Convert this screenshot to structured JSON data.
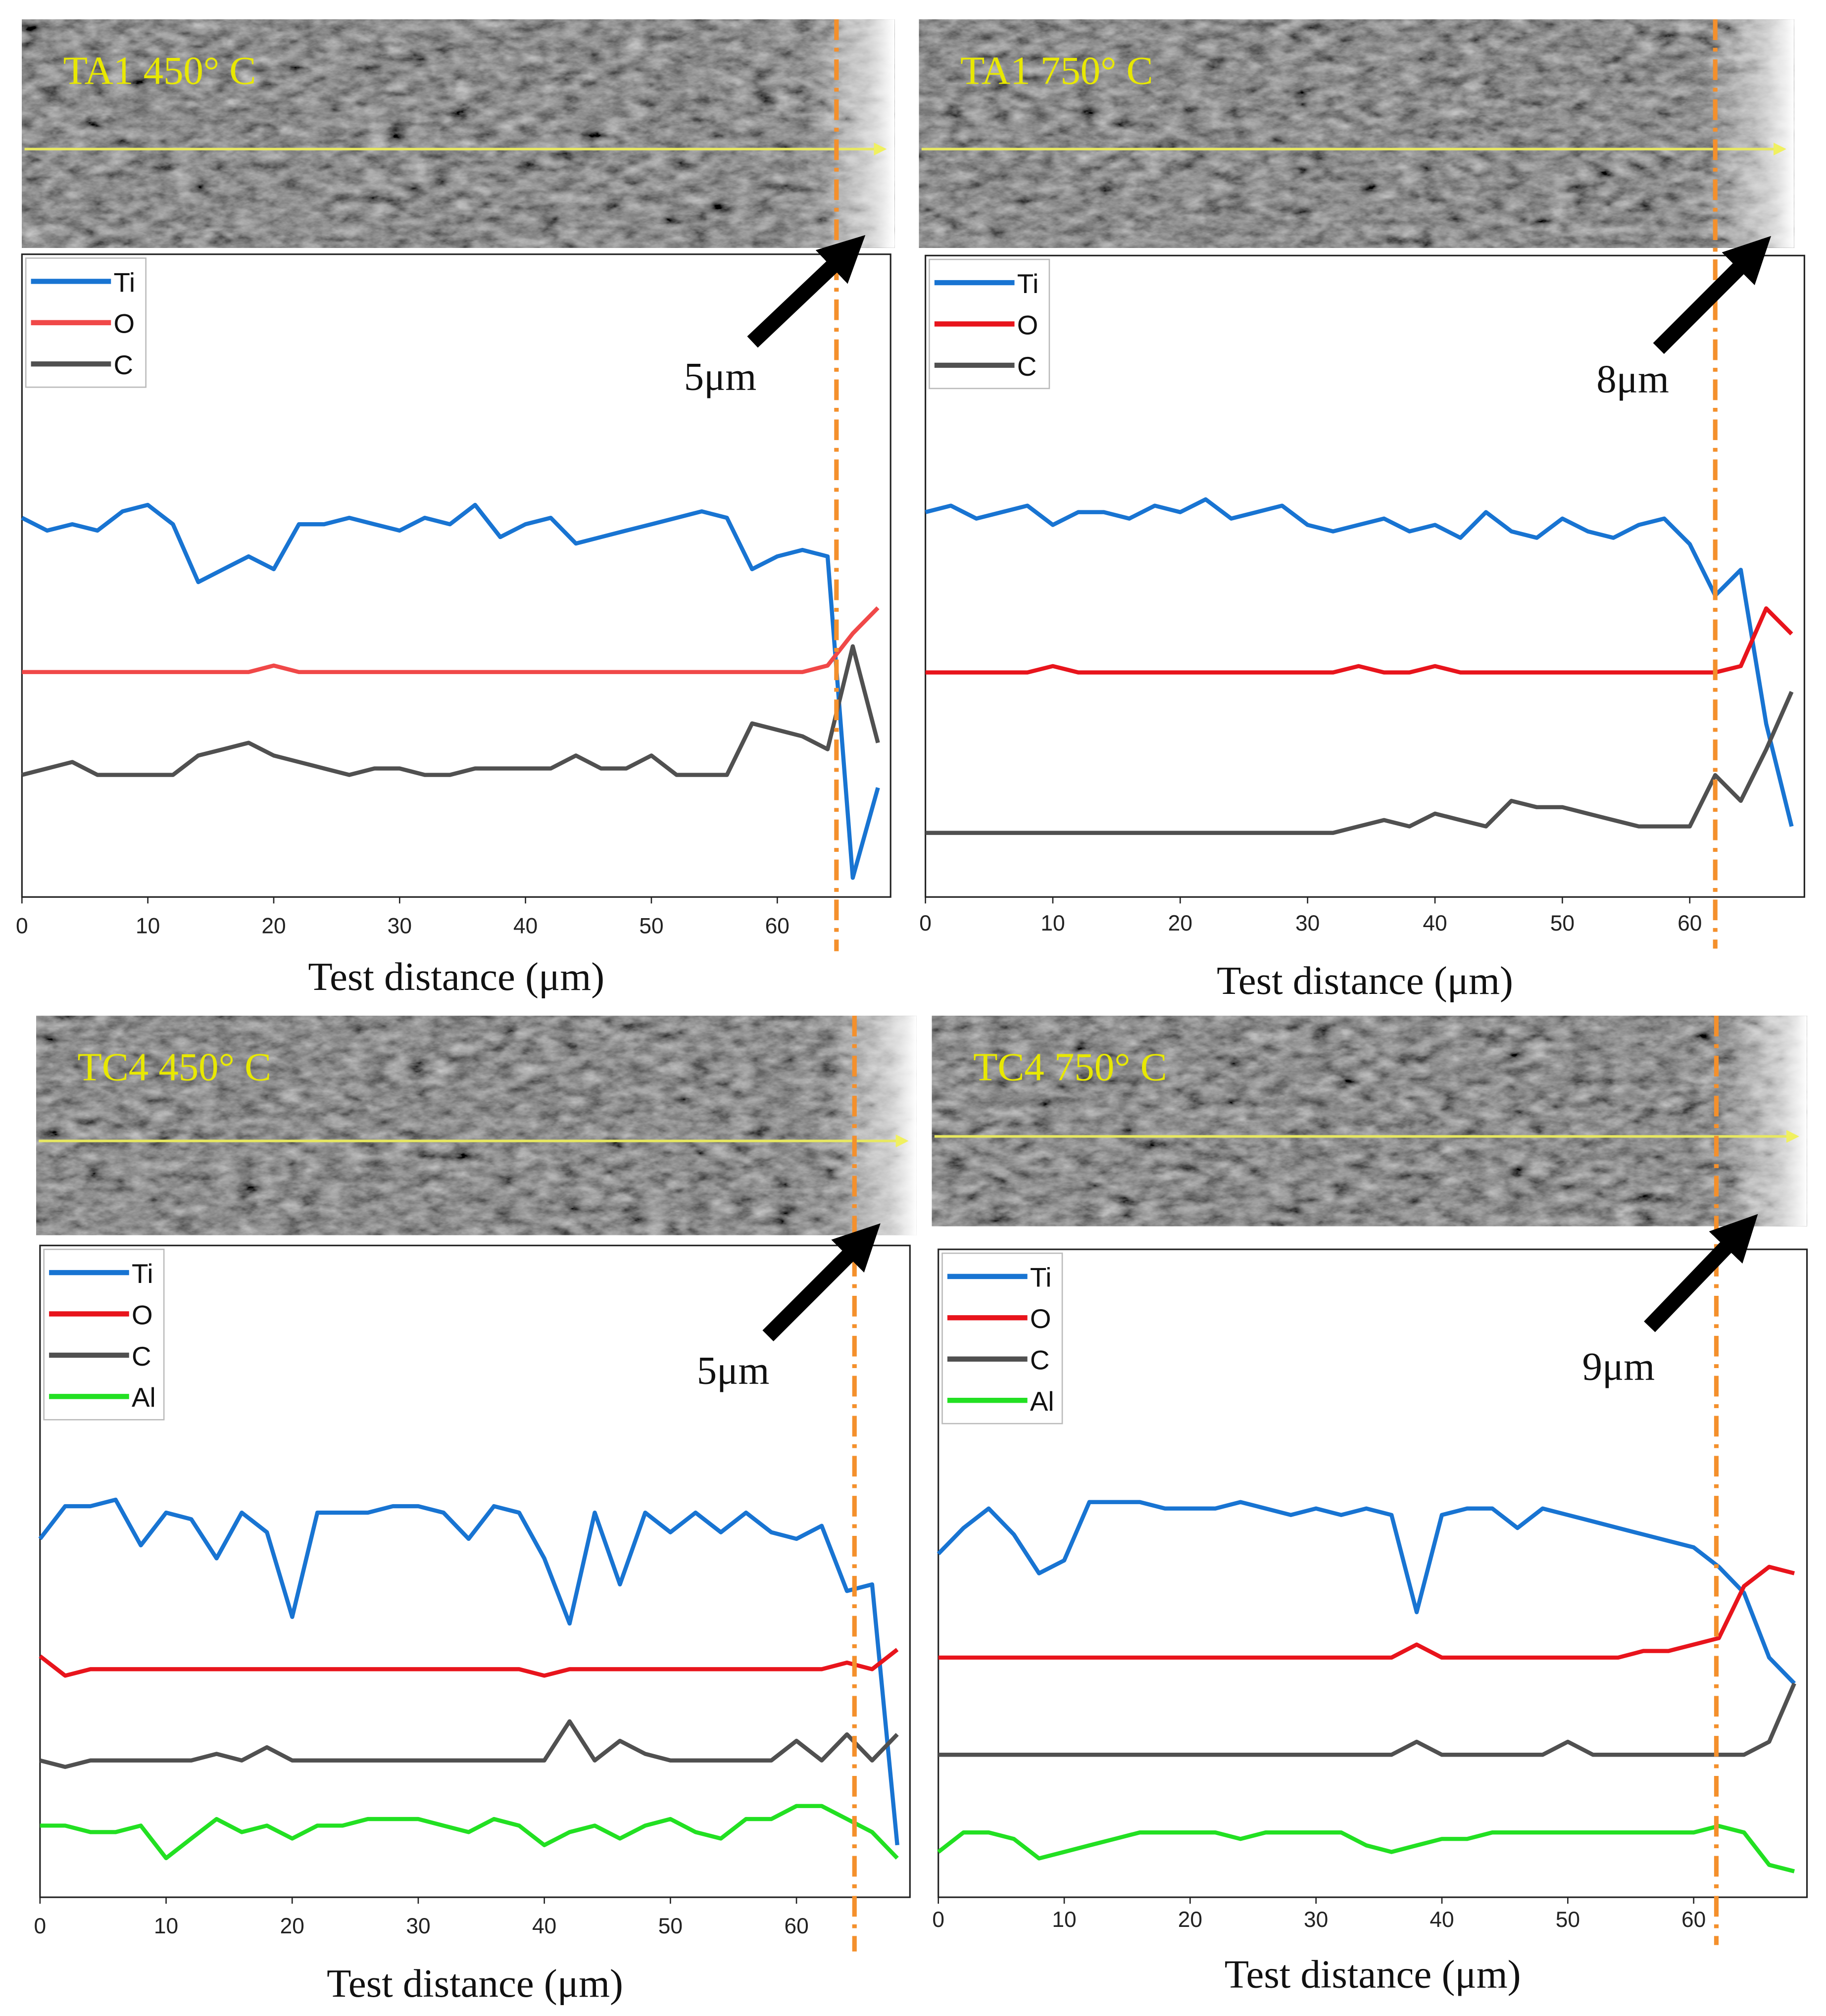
{
  "chart_data": [
    {
      "type": "line",
      "title": "TA1 450° C",
      "annotation": "5μm",
      "xlabel": "Test distance (μm)",
      "x": [
        0,
        2,
        4,
        6,
        8,
        10,
        12,
        14,
        16,
        18,
        20,
        22,
        24,
        26,
        28,
        30,
        32,
        34,
        36,
        38,
        40,
        42,
        44,
        46,
        48,
        50,
        52,
        54,
        56,
        58,
        60,
        62,
        64,
        66,
        68
      ],
      "xlim": [
        0,
        69
      ],
      "xticks": [
        0,
        10,
        20,
        30,
        40,
        50,
        60
      ],
      "ylim": [
        0,
        100
      ],
      "boundary_x": 64.7,
      "series": [
        {
          "name": "Ti",
          "color": "#1874d2",
          "values": [
            59,
            57,
            58,
            57,
            60,
            61,
            58,
            49,
            51,
            53,
            51,
            58,
            58,
            59,
            58,
            57,
            59,
            58,
            61,
            56,
            58,
            59,
            55,
            56,
            57,
            58,
            59,
            60,
            59,
            51,
            53,
            54,
            53,
            3,
            17
          ]
        },
        {
          "name": "O",
          "color": "#f04848",
          "values": [
            35,
            35,
            35,
            35,
            35,
            35,
            35,
            35,
            35,
            35,
            36,
            35,
            35,
            35,
            35,
            35,
            35,
            35,
            35,
            35,
            35,
            35,
            35,
            35,
            35,
            35,
            35,
            35,
            35,
            35,
            35,
            35,
            36,
            41,
            45
          ]
        },
        {
          "name": "C",
          "color": "#505050",
          "values": [
            19,
            20,
            21,
            19,
            19,
            19,
            19,
            22,
            23,
            24,
            22,
            21,
            20,
            19,
            20,
            20,
            19,
            19,
            20,
            20,
            20,
            20,
            22,
            20,
            20,
            22,
            19,
            19,
            19,
            27,
            26,
            25,
            23,
            39,
            24
          ]
        }
      ]
    },
    {
      "type": "line",
      "title": "TA1 750° C",
      "annotation": "8μm",
      "xlabel": "Test distance (μm)",
      "x": [
        0,
        2,
        4,
        6,
        8,
        10,
        12,
        14,
        16,
        18,
        20,
        22,
        24,
        26,
        28,
        30,
        32,
        34,
        36,
        38,
        40,
        42,
        44,
        46,
        48,
        50,
        52,
        54,
        56,
        58,
        60,
        62,
        64,
        66,
        68
      ],
      "xlim": [
        0,
        69
      ],
      "xticks": [
        0,
        10,
        20,
        30,
        40,
        50,
        60
      ],
      "ylim": [
        0,
        100
      ],
      "boundary_x": 62,
      "series": [
        {
          "name": "Ti",
          "color": "#1874d2",
          "values": [
            60,
            61,
            59,
            60,
            61,
            58,
            60,
            60,
            59,
            61,
            60,
            62,
            59,
            60,
            61,
            58,
            57,
            58,
            59,
            57,
            58,
            56,
            60,
            57,
            56,
            59,
            57,
            56,
            58,
            59,
            55,
            47,
            51,
            27,
            11
          ]
        },
        {
          "name": "O",
          "color": "#e8141c",
          "values": [
            35,
            35,
            35,
            35,
            35,
            36,
            35,
            35,
            35,
            35,
            35,
            35,
            35,
            35,
            35,
            35,
            35,
            36,
            35,
            35,
            36,
            35,
            35,
            35,
            35,
            35,
            35,
            35,
            35,
            35,
            35,
            35,
            36,
            45,
            41
          ]
        },
        {
          "name": "C",
          "color": "#505050",
          "values": [
            10,
            10,
            10,
            10,
            10,
            10,
            10,
            10,
            10,
            10,
            10,
            10,
            10,
            10,
            10,
            10,
            10,
            11,
            12,
            11,
            13,
            12,
            11,
            15,
            14,
            14,
            13,
            12,
            11,
            11,
            11,
            19,
            15,
            23,
            32
          ]
        }
      ]
    },
    {
      "type": "line",
      "title": "TC4 450° C",
      "annotation": "5μm",
      "xlabel": "Test distance (μm)",
      "x": [
        0,
        2,
        4,
        6,
        8,
        10,
        12,
        14,
        16,
        18,
        20,
        22,
        24,
        26,
        28,
        30,
        32,
        34,
        36,
        38,
        40,
        42,
        44,
        46,
        48,
        50,
        52,
        54,
        56,
        58,
        60,
        62,
        64,
        66,
        68
      ],
      "xlim": [
        0,
        69
      ],
      "xticks": [
        0,
        10,
        20,
        30,
        40,
        50,
        60
      ],
      "ylim": [
        0,
        100
      ],
      "boundary_x": 64.6,
      "series": [
        {
          "name": "Ti",
          "color": "#1874d2",
          "values": [
            55,
            60,
            60,
            61,
            54,
            59,
            58,
            52,
            59,
            56,
            43,
            59,
            59,
            59,
            60,
            60,
            59,
            55,
            60,
            59,
            52,
            42,
            59,
            48,
            59,
            56,
            59,
            56,
            59,
            56,
            55,
            57,
            47,
            48,
            8
          ]
        },
        {
          "name": "O",
          "color": "#e8141c",
          "values": [
            37,
            34,
            35,
            35,
            35,
            35,
            35,
            35,
            35,
            35,
            35,
            35,
            35,
            35,
            35,
            35,
            35,
            35,
            35,
            35,
            34,
            35,
            35,
            35,
            35,
            35,
            35,
            35,
            35,
            35,
            35,
            35,
            36,
            35,
            38
          ]
        },
        {
          "name": "C",
          "color": "#505050",
          "values": [
            21,
            20,
            21,
            21,
            21,
            21,
            21,
            22,
            21,
            23,
            21,
            21,
            21,
            21,
            21,
            21,
            21,
            21,
            21,
            21,
            21,
            27,
            21,
            24,
            22,
            21,
            21,
            21,
            21,
            21,
            24,
            21,
            25,
            21,
            25
          ]
        },
        {
          "name": "Al",
          "color": "#22e022",
          "values": [
            11,
            11,
            10,
            10,
            11,
            6,
            9,
            12,
            10,
            11,
            9,
            11,
            11,
            12,
            12,
            12,
            11,
            10,
            12,
            11,
            8,
            10,
            11,
            9,
            11,
            12,
            10,
            9,
            12,
            12,
            14,
            14,
            12,
            10,
            6
          ]
        }
      ]
    },
    {
      "type": "line",
      "title": "TC4 750° C",
      "annotation": "9μm",
      "xlabel": "Test distance (μm)",
      "x": [
        0,
        2,
        4,
        6,
        8,
        10,
        12,
        14,
        16,
        18,
        20,
        22,
        24,
        26,
        28,
        30,
        32,
        34,
        36,
        38,
        40,
        42,
        44,
        46,
        48,
        50,
        52,
        54,
        56,
        58,
        60,
        62,
        64,
        66,
        68
      ],
      "xlim": [
        0,
        69
      ],
      "xticks": [
        0,
        10,
        20,
        30,
        40,
        50,
        60
      ],
      "ylim": [
        0,
        100
      ],
      "boundary_x": 61.8,
      "series": [
        {
          "name": "Ti",
          "color": "#1874d2",
          "values": [
            53,
            57,
            60,
            56,
            50,
            52,
            61,
            61,
            61,
            60,
            60,
            60,
            61,
            60,
            59,
            60,
            59,
            60,
            59,
            44,
            59,
            60,
            60,
            57,
            60,
            59,
            58,
            57,
            56,
            55,
            54,
            51,
            47,
            37,
            33
          ]
        },
        {
          "name": "O",
          "color": "#e8141c",
          "values": [
            37,
            37,
            37,
            37,
            37,
            37,
            37,
            37,
            37,
            37,
            37,
            37,
            37,
            37,
            37,
            37,
            37,
            37,
            37,
            39,
            37,
            37,
            37,
            37,
            37,
            37,
            37,
            37,
            38,
            38,
            39,
            40,
            48,
            51,
            50
          ]
        },
        {
          "name": "C",
          "color": "#505050",
          "values": [
            22,
            22,
            22,
            22,
            22,
            22,
            22,
            22,
            22,
            22,
            22,
            22,
            22,
            22,
            22,
            22,
            22,
            22,
            22,
            24,
            22,
            22,
            22,
            22,
            22,
            24,
            22,
            22,
            22,
            22,
            22,
            22,
            22,
            24,
            33
          ]
        },
        {
          "name": "Al",
          "color": "#22e022",
          "values": [
            7,
            10,
            10,
            9,
            6,
            7,
            8,
            9,
            10,
            10,
            10,
            10,
            9,
            10,
            10,
            10,
            10,
            8,
            7,
            8,
            9,
            9,
            10,
            10,
            10,
            10,
            10,
            10,
            10,
            10,
            10,
            11,
            10,
            5,
            4
          ]
        }
      ]
    }
  ]
}
